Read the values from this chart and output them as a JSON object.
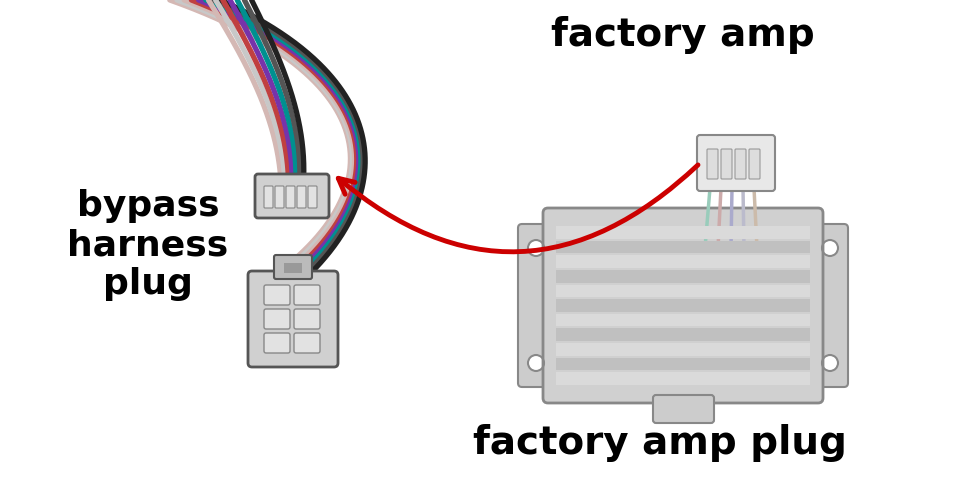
{
  "bg_color": "#ffffff",
  "label_bypass": "bypass\nharness\nplug",
  "label_factory_amp": "factory amp",
  "label_factory_amp_plug": "factory amp plug",
  "label_fontsize": 26,
  "label_fontweight": "black",
  "plug_color": "#d0d0d0",
  "plug_border": "#555555",
  "plug_inner_color": "#e2e2e2",
  "plug_inner_border": "#888888",
  "amp_body_color": "#d0d0d0",
  "amp_stripe_light": "#dadada",
  "amp_stripe_dark": "#c0c0c0",
  "amp_border": "#888888",
  "amp_tab_color": "#cccccc",
  "fap_color": "#e8e8e8",
  "fap_border": "#888888",
  "arrow_color": "#cc0000",
  "wire_colors_upper": [
    "#d4b8b4",
    "#c8c8c8",
    "#d4b8b4",
    "#c04040",
    "#7733aa",
    "#009090",
    "#555555",
    "#222222"
  ],
  "wire_colors_lower": [
    "#d4b8b4",
    "#c8c8c8",
    "#c04040",
    "#7733aa",
    "#009090",
    "#555555",
    "#222222"
  ],
  "fap_wire_colors": [
    "#99ccbb",
    "#ccaaaa",
    "#aaaacc",
    "#bbbbcc",
    "#ccbbaa"
  ]
}
